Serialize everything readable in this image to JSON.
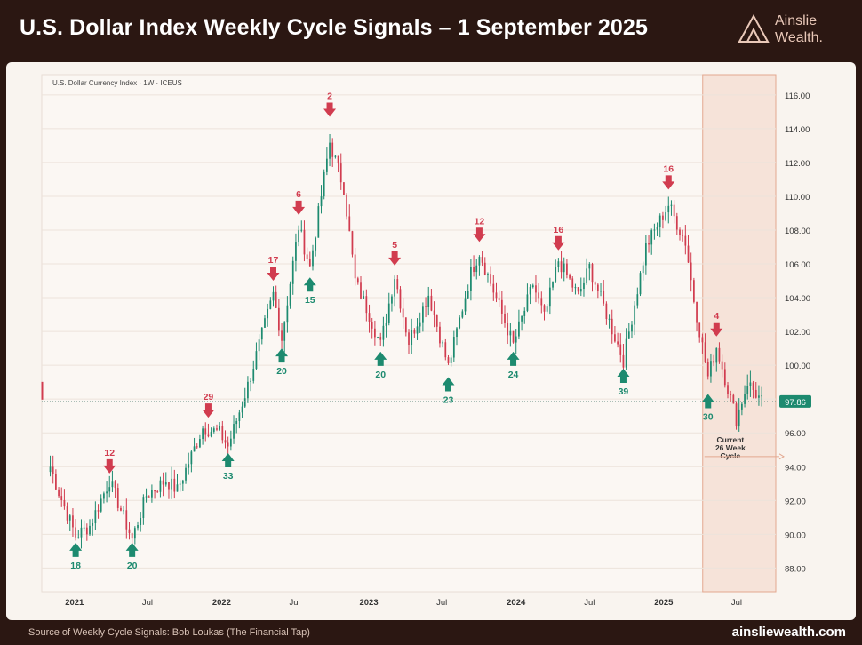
{
  "header": {
    "title": "U.S. Dollar Index Weekly Cycle Signals – 1 September 2025",
    "logo_line1": "Ainslie",
    "logo_line2": "Wealth."
  },
  "footer": {
    "source": "Source of Weekly Cycle Signals: Bob Loukas (The Financial Tap)",
    "site": "ainsliewealth.com"
  },
  "chart_data": {
    "type": "candlestick",
    "chart_label": "U.S. Dollar Currency Index · 1W · ICEUS",
    "ylim": [
      86.6,
      117.2
    ],
    "y_ticks": [
      "88.00",
      "90.00",
      "92.00",
      "94.00",
      "96.00",
      "98.00",
      "100.00",
      "102.00",
      "104.00",
      "106.00",
      "108.00",
      "110.00",
      "112.00",
      "114.00",
      "116.00"
    ],
    "x_ticks": [
      {
        "label": "2021",
        "date": "2021-01-01",
        "bold": true
      },
      {
        "label": "Jul",
        "date": "2021-07-01",
        "bold": false
      },
      {
        "label": "2022",
        "date": "2022-01-01",
        "bold": true
      },
      {
        "label": "Jul",
        "date": "2022-07-01",
        "bold": false
      },
      {
        "label": "2023",
        "date": "2023-01-01",
        "bold": true
      },
      {
        "label": "Jul",
        "date": "2023-07-01",
        "bold": false
      },
      {
        "label": "2024",
        "date": "2024-01-01",
        "bold": true
      },
      {
        "label": "Jul",
        "date": "2024-07-01",
        "bold": false
      },
      {
        "label": "2025",
        "date": "2025-01-01",
        "bold": true
      },
      {
        "label": "Jul",
        "date": "2025-07-01",
        "bold": false
      }
    ],
    "xlim": [
      "2020-10-12",
      "2025-10-06"
    ],
    "last_price": "97.86",
    "price_path": [
      [
        "2020-11-02",
        94.0
      ],
      [
        "2020-11-23",
        92.5
      ],
      [
        "2021-01-04",
        89.9
      ],
      [
        "2021-02-08",
        90.5
      ],
      [
        "2021-03-29",
        93.2
      ],
      [
        "2021-05-24",
        89.7
      ],
      [
        "2021-06-28",
        92.3
      ],
      [
        "2021-08-16",
        93.2
      ],
      [
        "2021-09-13",
        92.6
      ],
      [
        "2021-11-15",
        96.3
      ],
      [
        "2021-12-27",
        96.0
      ],
      [
        "2022-01-17",
        95.2
      ],
      [
        "2022-03-07",
        98.8
      ],
      [
        "2022-05-09",
        104.2
      ],
      [
        "2022-05-30",
        101.6
      ],
      [
        "2022-07-11",
        108.2
      ],
      [
        "2022-08-08",
        105.8
      ],
      [
        "2022-09-26",
        113.2
      ],
      [
        "2022-10-31",
        110.5
      ],
      [
        "2022-11-28",
        105.0
      ],
      [
        "2023-01-02",
        103.0
      ],
      [
        "2023-01-30",
        101.2
      ],
      [
        "2023-03-06",
        105.3
      ],
      [
        "2023-04-10",
        101.4
      ],
      [
        "2023-05-29",
        104.2
      ],
      [
        "2023-07-17",
        99.9
      ],
      [
        "2023-09-11",
        105.5
      ],
      [
        "2023-10-02",
        106.7
      ],
      [
        "2023-12-25",
        101.2
      ],
      [
        "2024-02-12",
        104.8
      ],
      [
        "2024-03-11",
        102.8
      ],
      [
        "2024-04-15",
        106.2
      ],
      [
        "2024-06-03",
        104.1
      ],
      [
        "2024-07-01",
        105.8
      ],
      [
        "2024-09-23",
        100.3
      ],
      [
        "2024-11-18",
        107.0
      ],
      [
        "2025-01-13",
        109.5
      ],
      [
        "2025-02-24",
        107.3
      ],
      [
        "2025-03-17",
        103.9
      ],
      [
        "2025-04-21",
        99.3
      ],
      [
        "2025-05-12",
        101.1
      ],
      [
        "2025-06-30",
        96.8
      ],
      [
        "2025-07-28",
        99.0
      ],
      [
        "2025-09-01",
        97.86
      ]
    ],
    "cycle_signals": [
      {
        "label": "12",
        "type": "top",
        "date": "2021-03-29",
        "price": 93.6
      },
      {
        "label": "18",
        "type": "bottom",
        "date": "2021-01-04",
        "price": 89.5
      },
      {
        "label": "20",
        "type": "bottom",
        "date": "2021-05-24",
        "price": 89.5
      },
      {
        "label": "29",
        "type": "top",
        "date": "2021-11-29",
        "price": 96.9
      },
      {
        "label": "33",
        "type": "bottom",
        "date": "2022-01-17",
        "price": 94.8
      },
      {
        "label": "17",
        "type": "top",
        "date": "2022-05-09",
        "price": 105.0
      },
      {
        "label": "20",
        "type": "bottom",
        "date": "2022-05-30",
        "price": 101.0
      },
      {
        "label": "6",
        "type": "top",
        "date": "2022-07-11",
        "price": 108.9
      },
      {
        "label": "15",
        "type": "bottom",
        "date": "2022-08-08",
        "price": 105.2
      },
      {
        "label": "2",
        "type": "top",
        "date": "2022-09-26",
        "price": 114.7
      },
      {
        "label": "5",
        "type": "top",
        "date": "2023-03-06",
        "price": 105.9
      },
      {
        "label": "20",
        "type": "bottom",
        "date": "2023-01-30",
        "price": 100.8
      },
      {
        "label": "23",
        "type": "bottom",
        "date": "2023-07-17",
        "price": 99.3
      },
      {
        "label": "12",
        "type": "top",
        "date": "2023-10-02",
        "price": 107.3
      },
      {
        "label": "24",
        "type": "bottom",
        "date": "2023-12-25",
        "price": 100.8
      },
      {
        "label": "16",
        "type": "top",
        "date": "2024-04-15",
        "price": 106.8
      },
      {
        "label": "39",
        "type": "bottom",
        "date": "2024-09-23",
        "price": 99.8
      },
      {
        "label": "16",
        "type": "top",
        "date": "2025-01-13",
        "price": 110.4
      },
      {
        "label": "4",
        "type": "top",
        "date": "2025-05-12",
        "price": 101.7
      },
      {
        "label": "30",
        "type": "bottom",
        "date": "2025-04-21",
        "price": 98.3
      }
    ],
    "current_cycle": {
      "label_lines": [
        "Current",
        "26 Week",
        "Cycle"
      ],
      "start_date": "2025-04-21"
    },
    "colors": {
      "up": "#1d8a6f",
      "down": "#d13c4f",
      "shade": "#f3d4c2",
      "card": "#f9f4ef"
    }
  }
}
